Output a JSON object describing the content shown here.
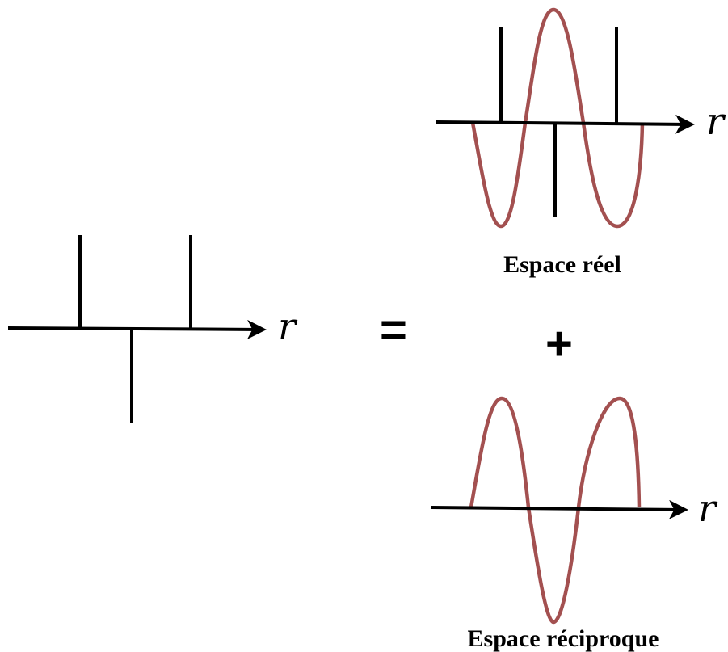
{
  "colors": {
    "ink": "#000000",
    "wave": "#a35050"
  },
  "left_panel": {
    "axis_label": "r"
  },
  "operators": {
    "equals": "=",
    "plus": "+"
  },
  "real_space": {
    "axis_label": "r",
    "caption": "Espace réel"
  },
  "reciprocal_space": {
    "axis_label": "r",
    "caption": "Espace réciproque"
  }
}
